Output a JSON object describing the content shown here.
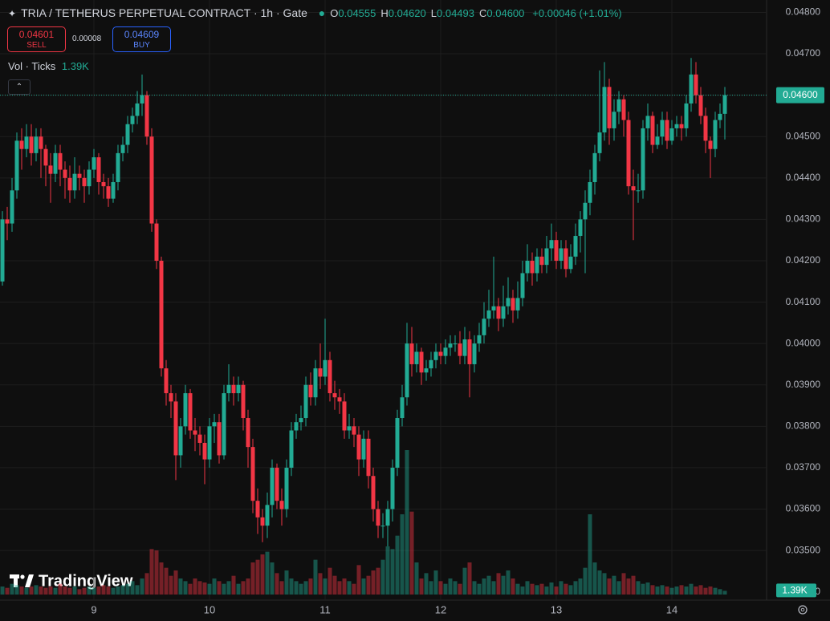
{
  "header": {
    "title": "TRIA / TETHERUS PERPETUAL CONTRACT · 1h · Gate",
    "ohlc": [
      {
        "key": "O",
        "value": "0.04555"
      },
      {
        "key": "H",
        "value": "0.04620"
      },
      {
        "key": "L",
        "value": "0.04493"
      },
      {
        "key": "C",
        "value": "0.04600"
      }
    ],
    "change": "+0.00046 (+1.01%)",
    "sell_price": "0.04601",
    "sell": "SELL",
    "spread": "0.00008",
    "buy_price": "0.04609",
    "buy": "BUY",
    "volume_title": "Vol · Ticks",
    "volume_value": "1.39K"
  },
  "logo": "TradingView",
  "chart_data": {
    "type": "candlestick",
    "up_color": "#22ab94",
    "down_color": "#f23645",
    "grid": true,
    "categories": [
      null,
      null,
      null,
      null,
      null,
      null,
      null,
      null,
      null,
      null,
      null,
      null,
      null,
      null,
      null,
      null,
      null,
      null,
      null,
      "9",
      null,
      null,
      null,
      null,
      null,
      null,
      null,
      null,
      null,
      null,
      null,
      null,
      null,
      null,
      null,
      null,
      null,
      null,
      null,
      null,
      null,
      null,
      null,
      "10",
      null,
      null,
      null,
      null,
      null,
      null,
      null,
      null,
      null,
      null,
      null,
      null,
      null,
      null,
      null,
      null,
      null,
      null,
      null,
      null,
      null,
      null,
      null,
      "11",
      null,
      null,
      null,
      null,
      null,
      null,
      null,
      null,
      null,
      null,
      null,
      null,
      null,
      null,
      null,
      null,
      null,
      null,
      null,
      null,
      null,
      null,
      null,
      "12",
      null,
      null,
      null,
      null,
      null,
      null,
      null,
      null,
      null,
      null,
      null,
      null,
      null,
      null,
      null,
      null,
      null,
      null,
      null,
      null,
      null,
      null,
      null,
      "13",
      null,
      null,
      null,
      null,
      null,
      null,
      null,
      null,
      null,
      null,
      null,
      null,
      null,
      null,
      null,
      null,
      null,
      null,
      null,
      null,
      null,
      null,
      null,
      "14",
      null,
      null,
      null,
      null,
      null,
      null,
      null,
      null,
      null,
      null,
      null
    ],
    "open": [
      0.0415,
      0.043,
      0.0429,
      0.0437,
      0.0449,
      0.0447,
      0.045,
      0.0446,
      0.045,
      0.0447,
      0.0443,
      0.0441,
      0.0446,
      0.0442,
      0.044,
      0.0437,
      0.0441,
      0.044,
      0.0438,
      0.0442,
      0.0445,
      0.0439,
      0.0438,
      0.0435,
      0.0439,
      0.0446,
      0.0448,
      0.0453,
      0.0455,
      0.0458,
      0.046,
      0.045,
      0.0429,
      0.042,
      0.0394,
      0.0388,
      0.0386,
      0.0373,
      0.038,
      0.0388,
      0.0379,
      0.0378,
      0.0376,
      0.0372,
      0.038,
      0.0381,
      0.0373,
      0.0388,
      0.039,
      0.0388,
      0.039,
      0.0382,
      0.0375,
      0.0362,
      0.0358,
      0.0356,
      0.0361,
      0.037,
      0.0362,
      0.036,
      0.037,
      0.0379,
      0.0381,
      0.0382,
      0.039,
      0.0387,
      0.0394,
      0.0392,
      0.0396,
      0.0388,
      0.0387,
      0.0386,
      0.0379,
      0.038,
      0.0378,
      0.0372,
      0.0377,
      0.0368,
      0.036,
      0.0356,
      0.0356,
      0.036,
      0.037,
      0.0382,
      0.0387,
      0.04,
      0.0395,
      0.0398,
      0.0393,
      0.0394,
      0.0396,
      0.0398,
      0.0397,
      0.0399,
      0.04,
      0.04,
      0.0397,
      0.0401,
      0.0395,
      0.04,
      0.0402,
      0.0406,
      0.0408,
      0.0409,
      0.0406,
      0.0409,
      0.0411,
      0.0408,
      0.0411,
      0.0417,
      0.042,
      0.0417,
      0.0421,
      0.0419,
      0.0423,
      0.0425,
      0.042,
      0.0423,
      0.0418,
      0.0421,
      0.0426,
      0.043,
      0.0434,
      0.0439,
      0.0446,
      0.0451,
      0.0462,
      0.0452,
      0.0456,
      0.0459,
      0.0454,
      0.0438,
      0.0437,
      0.0437,
      0.0452,
      0.0455,
      0.0448,
      0.045,
      0.0454,
      0.0449,
      0.0452,
      0.0453,
      0.0452,
      0.0458,
      0.0465,
      0.046,
      0.0455,
      0.0449,
      0.0447,
      0.0454,
      0.04555
    ],
    "high": [
      0.0432,
      0.0433,
      0.044,
      0.0451,
      0.0452,
      0.0453,
      0.0453,
      0.0452,
      0.0452,
      0.0448,
      0.0446,
      0.0448,
      0.0448,
      0.0444,
      0.0443,
      0.0445,
      0.0443,
      0.0442,
      0.0444,
      0.0447,
      0.0446,
      0.0441,
      0.044,
      0.0441,
      0.0448,
      0.045,
      0.0455,
      0.0457,
      0.0461,
      0.0465,
      0.0461,
      0.0452,
      0.043,
      0.0421,
      0.0396,
      0.039,
      0.0388,
      0.0382,
      0.039,
      0.0389,
      0.0382,
      0.038,
      0.0378,
      0.0382,
      0.0383,
      0.0383,
      0.039,
      0.0395,
      0.0392,
      0.0392,
      0.0391,
      0.0384,
      0.0377,
      0.0365,
      0.036,
      0.0364,
      0.0372,
      0.0371,
      0.0365,
      0.0372,
      0.0381,
      0.0383,
      0.0385,
      0.0392,
      0.0393,
      0.0396,
      0.04,
      0.0406,
      0.0398,
      0.0391,
      0.0389,
      0.0388,
      0.0383,
      0.0382,
      0.038,
      0.0379,
      0.0379,
      0.037,
      0.0362,
      0.0359,
      0.0362,
      0.0372,
      0.0384,
      0.039,
      0.0405,
      0.0404,
      0.04,
      0.0399,
      0.0396,
      0.0398,
      0.04,
      0.04,
      0.0401,
      0.0402,
      0.0402,
      0.0403,
      0.0404,
      0.0403,
      0.0402,
      0.0405,
      0.041,
      0.0413,
      0.0421,
      0.0411,
      0.0414,
      0.0416,
      0.0413,
      0.0415,
      0.042,
      0.0424,
      0.0422,
      0.0423,
      0.0423,
      0.0426,
      0.0429,
      0.0427,
      0.0425,
      0.0425,
      0.0424,
      0.0429,
      0.0432,
      0.0437,
      0.0442,
      0.0448,
      0.0466,
      0.0468,
      0.0464,
      0.0459,
      0.0461,
      0.046,
      0.0456,
      0.0442,
      0.0441,
      0.0454,
      0.0458,
      0.0456,
      0.0453,
      0.0456,
      0.0456,
      0.0454,
      0.0455,
      0.0455,
      0.046,
      0.0469,
      0.0468,
      0.0462,
      0.0457,
      0.045,
      0.0456,
      0.0458,
      0.0462
    ],
    "low": [
      0.0414,
      0.0425,
      0.0427,
      0.0435,
      0.0442,
      0.0445,
      0.0443,
      0.0444,
      0.044,
      0.0438,
      0.0434,
      0.0439,
      0.0438,
      0.0435,
      0.0434,
      0.0435,
      0.0437,
      0.0434,
      0.0436,
      0.044,
      0.0436,
      0.0435,
      0.0433,
      0.0434,
      0.0437,
      0.0444,
      0.0446,
      0.0451,
      0.0453,
      0.0455,
      0.0448,
      0.0427,
      0.0418,
      0.0392,
      0.0385,
      0.0382,
      0.0367,
      0.037,
      0.0378,
      0.0377,
      0.0374,
      0.0373,
      0.0366,
      0.037,
      0.0376,
      0.0371,
      0.0372,
      0.0386,
      0.0385,
      0.0386,
      0.0379,
      0.037,
      0.0359,
      0.0354,
      0.0352,
      0.0353,
      0.0358,
      0.036,
      0.0356,
      0.0358,
      0.0368,
      0.0377,
      0.0379,
      0.038,
      0.0385,
      0.0385,
      0.0389,
      0.039,
      0.0386,
      0.0384,
      0.0383,
      0.0377,
      0.0377,
      0.0375,
      0.0368,
      0.037,
      0.0365,
      0.0357,
      0.0353,
      0.0353,
      0.0351,
      0.0357,
      0.0368,
      0.038,
      0.0385,
      0.0392,
      0.0393,
      0.039,
      0.0391,
      0.0392,
      0.0394,
      0.0395,
      0.0395,
      0.0397,
      0.0398,
      0.0395,
      0.0395,
      0.0387,
      0.0393,
      0.0398,
      0.04,
      0.0404,
      0.0406,
      0.0403,
      0.0404,
      0.0407,
      0.0405,
      0.0406,
      0.0409,
      0.0415,
      0.0414,
      0.0415,
      0.0417,
      0.0417,
      0.042,
      0.0418,
      0.0418,
      0.0416,
      0.0417,
      0.0419,
      0.0422,
      0.0417,
      0.0431,
      0.0436,
      0.0444,
      0.0449,
      0.0448,
      0.0449,
      0.0453,
      0.045,
      0.0436,
      0.0425,
      0.0434,
      0.0435,
      0.0449,
      0.0446,
      0.0447,
      0.0448,
      0.0447,
      0.0448,
      0.045,
      0.0449,
      0.045,
      0.0456,
      0.0458,
      0.0453,
      0.0446,
      0.044,
      0.0445,
      0.0452,
      0.04493
    ],
    "close": [
      0.043,
      0.0429,
      0.0437,
      0.0449,
      0.0447,
      0.045,
      0.0446,
      0.045,
      0.0447,
      0.0443,
      0.0441,
      0.0446,
      0.0442,
      0.044,
      0.0437,
      0.0441,
      0.044,
      0.0438,
      0.0442,
      0.0445,
      0.0439,
      0.0438,
      0.0435,
      0.0439,
      0.0446,
      0.0448,
      0.0453,
      0.0455,
      0.0458,
      0.046,
      0.045,
      0.0429,
      0.042,
      0.0394,
      0.0388,
      0.0386,
      0.0373,
      0.038,
      0.0388,
      0.0379,
      0.0378,
      0.0376,
      0.0372,
      0.038,
      0.0381,
      0.0373,
      0.0388,
      0.039,
      0.0388,
      0.039,
      0.0382,
      0.0375,
      0.0362,
      0.0358,
      0.0356,
      0.0361,
      0.037,
      0.0362,
      0.036,
      0.037,
      0.0379,
      0.0381,
      0.0382,
      0.039,
      0.0387,
      0.0394,
      0.0392,
      0.0396,
      0.0388,
      0.0387,
      0.0386,
      0.0379,
      0.038,
      0.0378,
      0.0372,
      0.0377,
      0.0368,
      0.036,
      0.0356,
      0.0356,
      0.036,
      0.037,
      0.0382,
      0.0387,
      0.04,
      0.0395,
      0.0398,
      0.0393,
      0.0394,
      0.0396,
      0.0398,
      0.0397,
      0.0399,
      0.04,
      0.04,
      0.0397,
      0.0401,
      0.0395,
      0.04,
      0.0402,
      0.0406,
      0.0408,
      0.0409,
      0.0406,
      0.0409,
      0.0411,
      0.0408,
      0.0411,
      0.0417,
      0.042,
      0.0417,
      0.0421,
      0.0419,
      0.0423,
      0.0425,
      0.042,
      0.0423,
      0.0418,
      0.0421,
      0.0426,
      0.043,
      0.0434,
      0.0439,
      0.0446,
      0.0451,
      0.0462,
      0.0452,
      0.0456,
      0.0459,
      0.0454,
      0.0438,
      0.0437,
      0.0437,
      0.0452,
      0.0455,
      0.0448,
      0.045,
      0.0454,
      0.0449,
      0.0452,
      0.0453,
      0.0452,
      0.0458,
      0.0465,
      0.046,
      0.0455,
      0.0449,
      0.0447,
      0.0454,
      0.04555,
      0.046
    ],
    "volume": [
      3000,
      2500,
      4000,
      3500,
      3000,
      2500,
      3000,
      3500,
      3000,
      2500,
      3000,
      2500,
      4000,
      3000,
      2500,
      3000,
      2000,
      2500,
      3000,
      2500,
      3000,
      3500,
      3000,
      2500,
      3000,
      3500,
      4000,
      5000,
      3500,
      6000,
      8000,
      17000,
      16500,
      12000,
      10000,
      7000,
      9000,
      6000,
      5000,
      4000,
      6000,
      5000,
      4500,
      4000,
      6000,
      5000,
      4000,
      5000,
      7000,
      4000,
      5000,
      6000,
      12000,
      13000,
      15000,
      16000,
      12000,
      8000,
      5000,
      9000,
      6000,
      5000,
      4000,
      5000,
      6000,
      13000,
      8000,
      6000,
      10000,
      7000,
      5000,
      6000,
      5000,
      4000,
      11000,
      6000,
      7000,
      9000,
      10000,
      13000,
      18000,
      17000,
      22000,
      30000,
      54000,
      31000,
      12000,
      6000,
      8000,
      5000,
      9000,
      5000,
      4000,
      6000,
      5000,
      4000,
      10000,
      12000,
      5000,
      4000,
      6000,
      7000,
      5000,
      8000,
      7000,
      9000,
      6000,
      4000,
      3000,
      5000,
      4000,
      3500,
      4000,
      3000,
      4500,
      3000,
      5000,
      4000,
      3500,
      5000,
      6000,
      10000,
      30000,
      12000,
      9000,
      8000,
      6000,
      7000,
      5000,
      8000,
      6000,
      7000,
      5000,
      4000,
      4500,
      3500,
      3000,
      3500,
      3000,
      2500,
      3000,
      3500,
      3000,
      4000,
      3000,
      3500,
      2500,
      3000,
      2500,
      2000,
      1390
    ],
    "ylim": [
      0.0338,
      0.0483
    ],
    "yticks": [
      {
        "value": 0.048,
        "label": "0.04800"
      },
      {
        "value": 0.047,
        "label": "0.04700"
      },
      {
        "value": 0.046,
        "label": "0.04600"
      },
      {
        "value": 0.045,
        "label": "0.04500"
      },
      {
        "value": 0.044,
        "label": "0.04400"
      },
      {
        "value": 0.043,
        "label": "0.04300"
      },
      {
        "value": 0.042,
        "label": "0.04200"
      },
      {
        "value": 0.041,
        "label": "0.04100"
      },
      {
        "value": 0.04,
        "label": "0.04000"
      },
      {
        "value": 0.039,
        "label": "0.03900"
      },
      {
        "value": 0.038,
        "label": "0.03800"
      },
      {
        "value": 0.037,
        "label": "0.03700"
      },
      {
        "value": 0.036,
        "label": "0.03600"
      },
      {
        "value": 0.035,
        "label": "0.03500"
      }
    ],
    "volume_ylim": [
      0,
      60000
    ],
    "volume_yticks": [
      0
    ],
    "last_price_label": "0.04600",
    "last_volume_label": "1.39K"
  }
}
